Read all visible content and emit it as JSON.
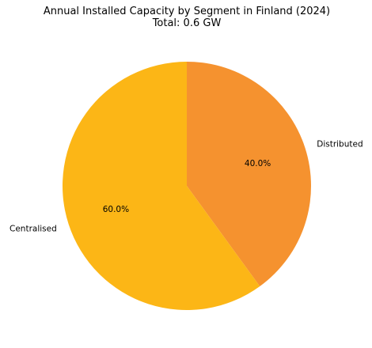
{
  "chart_data": {
    "type": "pie",
    "title": "Annual Installed Capacity by Segment in Finland (2024)",
    "subtitle": "Total: 0.6 GW",
    "categories": [
      "Distributed",
      "Centralised"
    ],
    "values": [
      40.0,
      60.0
    ],
    "value_labels": [
      "40.0%",
      "60.0%"
    ],
    "colors": [
      "#F5922F",
      "#FCB616"
    ],
    "start_angle_deg": 90,
    "direction": "clockwise",
    "legend": "none"
  }
}
